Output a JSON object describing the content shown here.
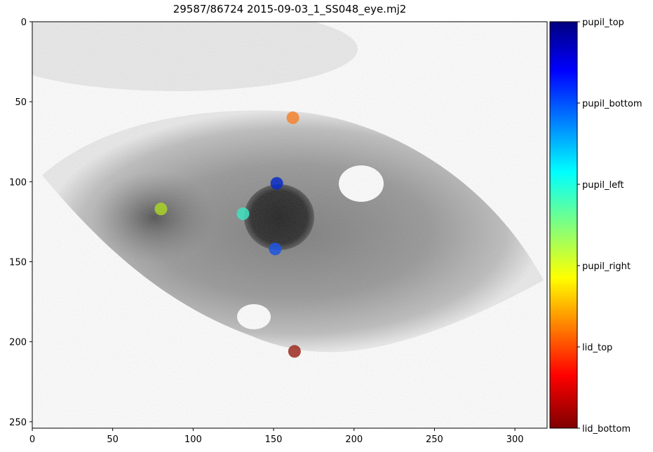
{
  "chart_data": {
    "type": "scatter",
    "title": "29587/86724 2015-09-03_1_SS048_eye.mj2",
    "xlabel": "",
    "ylabel": "",
    "xlim": [
      0,
      320
    ],
    "ylim": [
      254,
      0
    ],
    "x_ticks": [
      0,
      50,
      100,
      150,
      200,
      250,
      300
    ],
    "y_ticks": [
      0,
      50,
      100,
      150,
      200,
      250
    ],
    "background": "grayscale eye image",
    "points": [
      {
        "name": "pupil_top",
        "x": 152,
        "y": 101,
        "color": "#0a2bc4"
      },
      {
        "name": "pupil_bottom",
        "x": 151,
        "y": 142,
        "color": "#1f55e0"
      },
      {
        "name": "pupil_left",
        "x": 131,
        "y": 120,
        "color": "#40e0c0"
      },
      {
        "name": "pupil_right",
        "x": 80,
        "y": 117,
        "color": "#a8d428"
      },
      {
        "name": "lid_top",
        "x": 162,
        "y": 60,
        "color": "#f5822e"
      },
      {
        "name": "lid_bottom",
        "x": 163,
        "y": 206,
        "color": "#9b2a1e"
      }
    ],
    "colorbar": {
      "colormap": "jet",
      "labels": [
        "pupil_top",
        "pupil_bottom",
        "pupil_left",
        "pupil_right",
        "lid_top",
        "lid_bottom"
      ]
    }
  }
}
